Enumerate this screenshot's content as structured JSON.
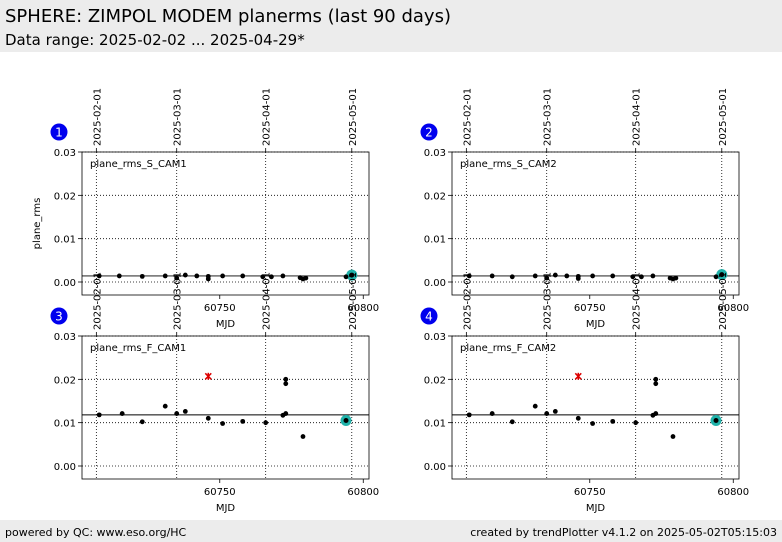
{
  "header": {
    "title": "SPHERE: ZIMPOL MODEM planerms (last 90 days)",
    "subtitle": "Data range: 2025-02-02 ... 2025-04-29*"
  },
  "footer": {
    "left": "powered by QC: www.eso.org/HC",
    "right": "created by trendPlotter v4.1.2 on 2025-05-02T05:15:03"
  },
  "colors": {
    "marker": "#000000",
    "outlier": "#dd0000",
    "highlight": "#20b2aa",
    "badge": "#0000ee"
  },
  "chart_data": [
    {
      "type": "scatter",
      "panel_number": "1",
      "label": "plane_rms_S_CAM1",
      "xlabel": "MJD",
      "ylabel": "plane_rms",
      "xlim": [
        60702,
        60802
      ],
      "ylim": [
        -0.003,
        0.03
      ],
      "x_ticks": [
        60750,
        60800
      ],
      "y_ticks": [
        0.0,
        0.01,
        0.02,
        0.03
      ],
      "y_tick_labels": [
        "0.00",
        "0.01",
        "0.02",
        "0.03"
      ],
      "date_ticks": [
        {
          "mjd": 60707,
          "label": "2025-02-01"
        },
        {
          "mjd": 60735,
          "label": "2025-03-01"
        },
        {
          "mjd": 60766,
          "label": "2025-04-01"
        },
        {
          "mjd": 60796,
          "label": "2025-05-01"
        }
      ],
      "reference_line": 0.0014,
      "points": [
        {
          "x": 60708,
          "y": 0.0014
        },
        {
          "x": 60715,
          "y": 0.0014
        },
        {
          "x": 60723,
          "y": 0.0013
        },
        {
          "x": 60731,
          "y": 0.0014
        },
        {
          "x": 60735,
          "y": 0.0009
        },
        {
          "x": 60738,
          "y": 0.0016
        },
        {
          "x": 60742,
          "y": 0.0014
        },
        {
          "x": 60746,
          "y": 0.0013
        },
        {
          "x": 60746,
          "y": 0.0007
        },
        {
          "x": 60751,
          "y": 0.0014
        },
        {
          "x": 60758,
          "y": 0.0014
        },
        {
          "x": 60765,
          "y": 0.0012
        },
        {
          "x": 60768,
          "y": 0.0012
        },
        {
          "x": 60772,
          "y": 0.0014
        },
        {
          "x": 60778,
          "y": 0.001
        },
        {
          "x": 60779,
          "y": 0.0007
        },
        {
          "x": 60780,
          "y": 0.0009
        },
        {
          "x": 60794,
          "y": 0.0012
        }
      ],
      "outliers": [],
      "latest": {
        "x": 60796,
        "y": 0.0016
      }
    },
    {
      "type": "scatter",
      "panel_number": "2",
      "label": "plane_rms_S_CAM2",
      "xlabel": "MJD",
      "ylabel": "",
      "xlim": [
        60702,
        60802
      ],
      "ylim": [
        -0.003,
        0.03
      ],
      "x_ticks": [
        60750,
        60800
      ],
      "y_ticks": [
        0.0,
        0.01,
        0.02,
        0.03
      ],
      "y_tick_labels": [
        "0.00",
        "0.01",
        "0.02",
        "0.03"
      ],
      "date_ticks": [
        {
          "mjd": 60707,
          "label": "2025-02-01"
        },
        {
          "mjd": 60735,
          "label": "2025-03-01"
        },
        {
          "mjd": 60766,
          "label": "2025-04-01"
        },
        {
          "mjd": 60796,
          "label": "2025-05-01"
        }
      ],
      "reference_line": 0.0014,
      "points": [
        {
          "x": 60708,
          "y": 0.0014
        },
        {
          "x": 60716,
          "y": 0.0014
        },
        {
          "x": 60723,
          "y": 0.0012
        },
        {
          "x": 60731,
          "y": 0.0014
        },
        {
          "x": 60735,
          "y": 0.0009
        },
        {
          "x": 60738,
          "y": 0.0016
        },
        {
          "x": 60742,
          "y": 0.0014
        },
        {
          "x": 60746,
          "y": 0.0013
        },
        {
          "x": 60746,
          "y": 0.0008
        },
        {
          "x": 60751,
          "y": 0.0014
        },
        {
          "x": 60758,
          "y": 0.0014
        },
        {
          "x": 60765,
          "y": 0.0012
        },
        {
          "x": 60768,
          "y": 0.0012
        },
        {
          "x": 60772,
          "y": 0.0014
        },
        {
          "x": 60778,
          "y": 0.0009
        },
        {
          "x": 60779,
          "y": 0.0007
        },
        {
          "x": 60780,
          "y": 0.0009
        },
        {
          "x": 60794,
          "y": 0.0012
        }
      ],
      "outliers": [],
      "latest": {
        "x": 60796,
        "y": 0.0017
      }
    },
    {
      "type": "scatter",
      "panel_number": "3",
      "label": "plane_rms_F_CAM1",
      "xlabel": "MJD",
      "ylabel": "",
      "xlim": [
        60702,
        60802
      ],
      "ylim": [
        -0.003,
        0.03
      ],
      "x_ticks": [
        60750,
        60800
      ],
      "y_ticks": [
        0.0,
        0.01,
        0.02,
        0.03
      ],
      "y_tick_labels": [
        "0.00",
        "0.01",
        "0.02",
        "0.03"
      ],
      "date_ticks": [
        {
          "mjd": 60707,
          "label": "2025-02-01"
        },
        {
          "mjd": 60735,
          "label": "2025-03-01"
        },
        {
          "mjd": 60766,
          "label": "2025-04-01"
        },
        {
          "mjd": 60796,
          "label": "2025-05-01"
        }
      ],
      "reference_line": 0.0118,
      "points": [
        {
          "x": 60708,
          "y": 0.0118
        },
        {
          "x": 60716,
          "y": 0.0121
        },
        {
          "x": 60723,
          "y": 0.0102
        },
        {
          "x": 60731,
          "y": 0.0138
        },
        {
          "x": 60735,
          "y": 0.0121
        },
        {
          "x": 60738,
          "y": 0.0126
        },
        {
          "x": 60746,
          "y": 0.011
        },
        {
          "x": 60751,
          "y": 0.0098
        },
        {
          "x": 60758,
          "y": 0.0103
        },
        {
          "x": 60766,
          "y": 0.01
        },
        {
          "x": 60772,
          "y": 0.0117
        },
        {
          "x": 60773,
          "y": 0.0121
        },
        {
          "x": 60773,
          "y": 0.019
        },
        {
          "x": 60773,
          "y": 0.02
        },
        {
          "x": 60779,
          "y": 0.0068
        }
      ],
      "outliers": [
        {
          "x": 60746,
          "y": 0.0207
        }
      ],
      "latest": {
        "x": 60794,
        "y": 0.0105
      }
    },
    {
      "type": "scatter",
      "panel_number": "4",
      "label": "plane_rms_F_CAM2",
      "xlabel": "MJD",
      "ylabel": "",
      "xlim": [
        60702,
        60802
      ],
      "ylim": [
        -0.003,
        0.03
      ],
      "x_ticks": [
        60750,
        60800
      ],
      "y_ticks": [
        0.0,
        0.01,
        0.02,
        0.03
      ],
      "y_tick_labels": [
        "0.00",
        "0.01",
        "0.02",
        "0.03"
      ],
      "date_ticks": [
        {
          "mjd": 60707,
          "label": "2025-02-01"
        },
        {
          "mjd": 60735,
          "label": "2025-03-01"
        },
        {
          "mjd": 60766,
          "label": "2025-04-01"
        },
        {
          "mjd": 60796,
          "label": "2025-05-01"
        }
      ],
      "reference_line": 0.0118,
      "points": [
        {
          "x": 60708,
          "y": 0.0118
        },
        {
          "x": 60716,
          "y": 0.0121
        },
        {
          "x": 60723,
          "y": 0.0102
        },
        {
          "x": 60731,
          "y": 0.0138
        },
        {
          "x": 60735,
          "y": 0.0121
        },
        {
          "x": 60738,
          "y": 0.0126
        },
        {
          "x": 60746,
          "y": 0.011
        },
        {
          "x": 60751,
          "y": 0.0098
        },
        {
          "x": 60758,
          "y": 0.0103
        },
        {
          "x": 60766,
          "y": 0.01
        },
        {
          "x": 60772,
          "y": 0.0117
        },
        {
          "x": 60773,
          "y": 0.0121
        },
        {
          "x": 60773,
          "y": 0.019
        },
        {
          "x": 60773,
          "y": 0.02
        },
        {
          "x": 60779,
          "y": 0.0068
        }
      ],
      "outliers": [
        {
          "x": 60746,
          "y": 0.0207
        }
      ],
      "latest": {
        "x": 60794,
        "y": 0.0105
      }
    }
  ]
}
